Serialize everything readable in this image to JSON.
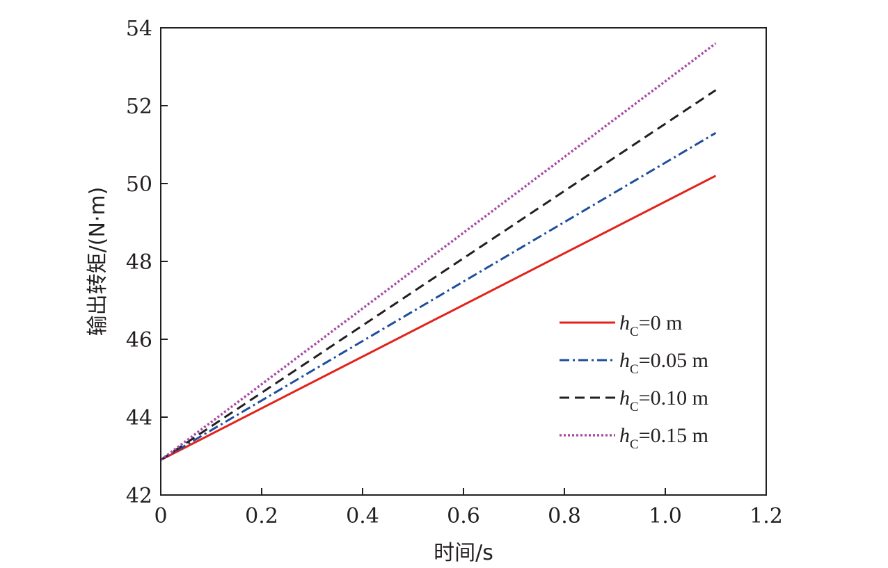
{
  "chart_data": {
    "type": "line",
    "title": "",
    "xlabel": "时间/s",
    "ylabel": "输出转矩/(N·m)",
    "xlim": [
      0,
      1.2
    ],
    "ylim": [
      42,
      54
    ],
    "xticks": [
      0,
      0.2,
      0.4,
      0.6,
      0.8,
      1.0,
      1.2
    ],
    "xtick_labels": [
      "0",
      "0.2",
      "0.4",
      "0.6",
      "0.8",
      "1.0",
      "1.2"
    ],
    "yticks": [
      42,
      44,
      46,
      48,
      50,
      52,
      54
    ],
    "ytick_labels": [
      "42",
      "44",
      "46",
      "48",
      "50",
      "52",
      "54"
    ],
    "grid": false,
    "legend_position": "center-right",
    "series": [
      {
        "name": "0 m",
        "legend_symbol": "h",
        "legend_subscript": "C",
        "legend_eq": "=",
        "color": "#e2231a",
        "style": "solid",
        "x": [
          0,
          1.1
        ],
        "y": [
          42.9,
          50.2
        ]
      },
      {
        "name": "0.05 m",
        "legend_symbol": "h",
        "legend_subscript": "C",
        "legend_eq": "=",
        "color": "#1f4e9c",
        "style": "dashdot",
        "x": [
          0,
          1.1
        ],
        "y": [
          42.9,
          51.3
        ]
      },
      {
        "name": "0.10 m",
        "legend_symbol": "h",
        "legend_subscript": "C",
        "legend_eq": "=",
        "color": "#231f20",
        "style": "dashed",
        "x": [
          0,
          1.1
        ],
        "y": [
          42.9,
          52.4
        ]
      },
      {
        "name": "0.15 m",
        "legend_symbol": "h",
        "legend_subscript": "C",
        "legend_eq": "=",
        "color": "#a64ca6",
        "style": "dotted",
        "x": [
          0,
          1.1
        ],
        "y": [
          42.9,
          53.6
        ]
      }
    ]
  }
}
